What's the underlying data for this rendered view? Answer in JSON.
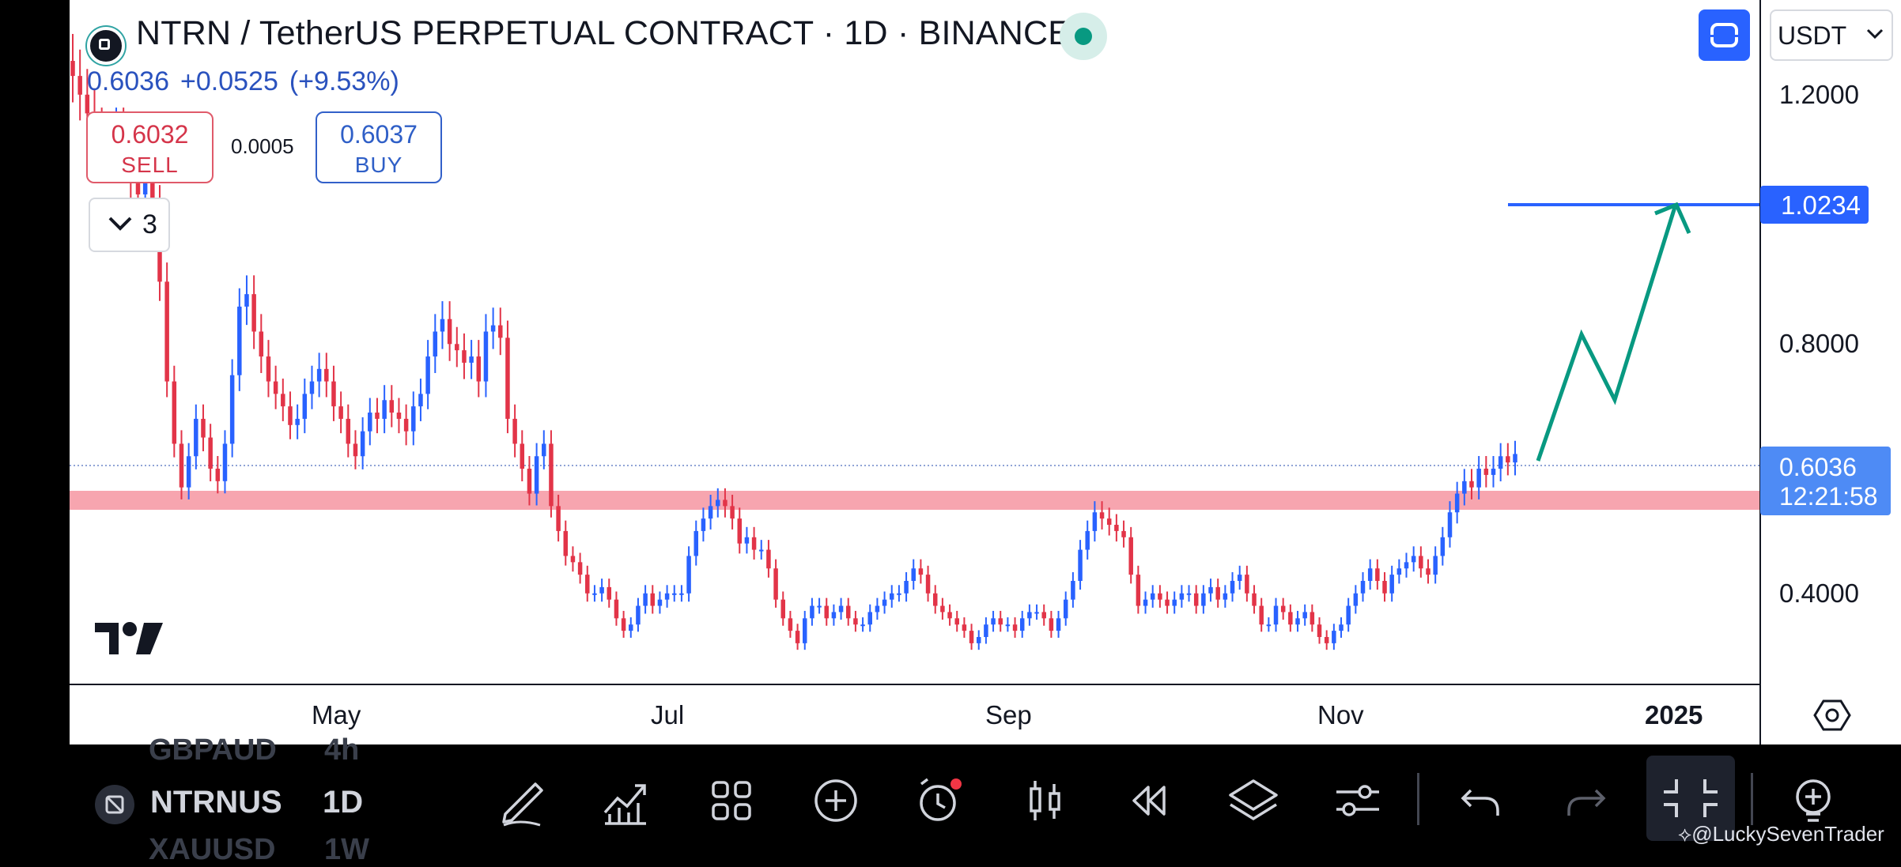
{
  "header": {
    "title": "NTRN / TetherUS PERPETUAL CONTRACT · 1D · BINANCE",
    "last_price": "0.6036",
    "change": "+0.0525",
    "change_pct": "(+9.53%)",
    "sell_price": "0.6032",
    "sell_label": "SELL",
    "buy_price": "0.6037",
    "buy_label": "BUY",
    "spread": "0.0005",
    "indicators_count": "3",
    "currency": "USDT",
    "status_color": "#089981"
  },
  "price_axis": {
    "labels": [
      "1.2000",
      "0.8000",
      "0.4000"
    ],
    "target_badge": "1.0234",
    "current_price": "0.6036",
    "countdown": "12:21:58"
  },
  "time_axis": {
    "labels": [
      "May",
      "Jul",
      "Sep",
      "Nov",
      "2025"
    ]
  },
  "bottom_toolbar": {
    "symbol": "NTRNUS",
    "timeframe": "1D",
    "ghost_symbol_above": "GBPAUD",
    "ghost_tf_above": "4h",
    "ghost_symbol_below": "XAUUSD",
    "ghost_tf_below": "1W",
    "tools": [
      "pencil-icon",
      "indicators-icon",
      "grid-icon",
      "add-icon",
      "alert-icon",
      "candles-icon",
      "replay-icon",
      "layers-icon",
      "settings-icon",
      "undo-icon",
      "redo-icon",
      "collapse-icon",
      "idea-icon"
    ]
  },
  "watermark": "@LuckySevenTrader",
  "colors": {
    "up": "#2962ff",
    "down": "#e23448",
    "support_zone": "#f7a5af",
    "projection": "#089981",
    "target_line": "#2962ff"
  },
  "chart_data": {
    "type": "candlestick",
    "symbol": "NTRN/USDT perpetual",
    "timeframe": "1D",
    "y_axis_ticks": [
      1.2,
      0.8,
      0.4
    ],
    "x_axis_ticks": [
      "May",
      "Jul",
      "Sep",
      "Nov",
      "2025"
    ],
    "last_price": 0.6036,
    "target_level": 1.0234,
    "support_zone": [
      0.555,
      0.585
    ],
    "projection_path": [
      0.62,
      0.82,
      0.71,
      1.02
    ],
    "approx_closes": [
      1.21,
      1.18,
      1.15,
      1.12,
      1.1,
      1.08,
      1.12,
      1.1,
      1.05,
      1.02,
      1.06,
      1.0,
      0.88,
      0.72,
      0.62,
      0.55,
      0.6,
      0.66,
      0.63,
      0.58,
      0.56,
      0.62,
      0.73,
      0.84,
      0.86,
      0.8,
      0.76,
      0.72,
      0.7,
      0.68,
      0.65,
      0.66,
      0.7,
      0.72,
      0.74,
      0.72,
      0.68,
      0.66,
      0.62,
      0.6,
      0.64,
      0.67,
      0.66,
      0.69,
      0.67,
      0.66,
      0.64,
      0.68,
      0.7,
      0.76,
      0.8,
      0.82,
      0.78,
      0.77,
      0.75,
      0.76,
      0.72,
      0.8,
      0.81,
      0.79,
      0.66,
      0.62,
      0.58,
      0.54,
      0.6,
      0.62,
      0.52,
      0.48,
      0.44,
      0.43,
      0.41,
      0.38,
      0.38,
      0.39,
      0.37,
      0.34,
      0.32,
      0.33,
      0.36,
      0.38,
      0.36,
      0.37,
      0.38,
      0.38,
      0.38,
      0.44,
      0.48,
      0.5,
      0.52,
      0.53,
      0.52,
      0.5,
      0.46,
      0.47,
      0.45,
      0.45,
      0.42,
      0.37,
      0.34,
      0.32,
      0.3,
      0.34,
      0.36,
      0.36,
      0.34,
      0.35,
      0.36,
      0.34,
      0.33,
      0.33,
      0.35,
      0.36,
      0.37,
      0.38,
      0.38,
      0.4,
      0.42,
      0.41,
      0.38,
      0.36,
      0.35,
      0.34,
      0.33,
      0.32,
      0.3,
      0.31,
      0.33,
      0.34,
      0.33,
      0.33,
      0.32,
      0.34,
      0.35,
      0.35,
      0.34,
      0.32,
      0.34,
      0.37,
      0.4,
      0.45,
      0.48,
      0.51,
      0.5,
      0.49,
      0.48,
      0.47,
      0.41,
      0.36,
      0.37,
      0.38,
      0.37,
      0.36,
      0.37,
      0.38,
      0.38,
      0.36,
      0.38,
      0.39,
      0.37,
      0.38,
      0.4,
      0.41,
      0.38,
      0.36,
      0.33,
      0.33,
      0.36,
      0.35,
      0.33,
      0.34,
      0.35,
      0.33,
      0.31,
      0.3,
      0.32,
      0.33,
      0.36,
      0.38,
      0.4,
      0.42,
      0.4,
      0.38,
      0.41,
      0.42,
      0.43,
      0.44,
      0.42,
      0.41,
      0.44,
      0.47,
      0.51,
      0.54,
      0.56,
      0.55,
      0.58,
      0.57,
      0.58,
      0.6,
      0.59,
      0.6036
    ]
  }
}
